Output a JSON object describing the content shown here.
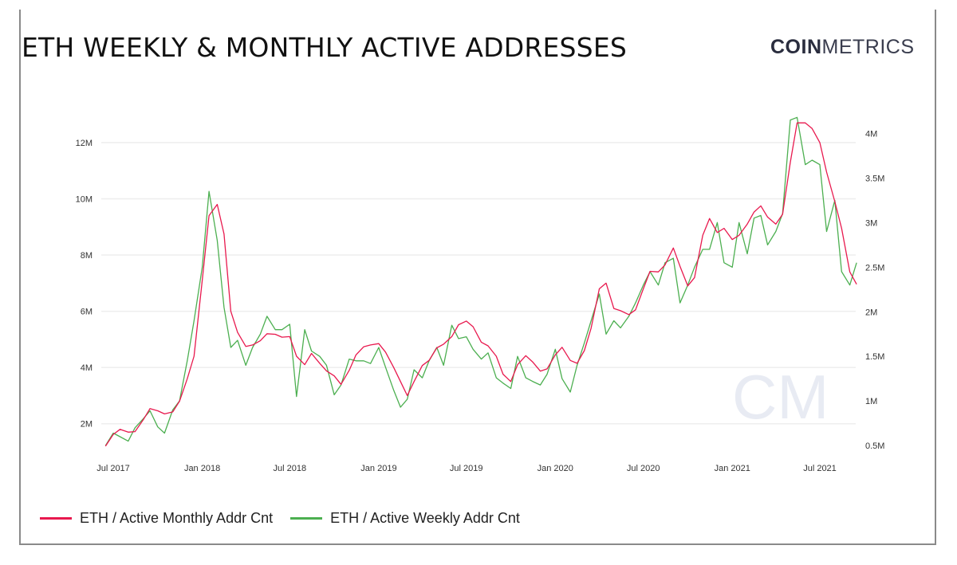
{
  "title": "ETH WEEKLY & MONTHLY ACTIVE ADDRESSES",
  "logo": {
    "bold": "COIN",
    "light": "METRICS",
    "watermark": "CM"
  },
  "chart_data": {
    "type": "line",
    "title": "ETH WEEKLY & MONTHLY ACTIVE ADDRESSES",
    "x_ticks": [
      {
        "date": "2017-07-01",
        "label": "Jul 2017"
      },
      {
        "date": "2018-01-01",
        "label": "Jan 2018"
      },
      {
        "date": "2018-07-01",
        "label": "Jul 2018"
      },
      {
        "date": "2019-01-01",
        "label": "Jan 2019"
      },
      {
        "date": "2019-07-01",
        "label": "Jul 2019"
      },
      {
        "date": "2020-01-01",
        "label": "Jan 2020"
      },
      {
        "date": "2020-07-01",
        "label": "Jul 2020"
      },
      {
        "date": "2021-01-01",
        "label": "Jan 2021"
      },
      {
        "date": "2021-07-01",
        "label": "Jul 2021"
      }
    ],
    "y_left": {
      "ticks": [
        2,
        4,
        6,
        8,
        10,
        12
      ],
      "tick_labels": [
        "2M",
        "4M",
        "6M",
        "8M",
        "10M",
        "12M"
      ],
      "ylim": [
        1,
        13.5
      ],
      "unit": "millions",
      "grid": true
    },
    "y_right": {
      "ticks": [
        0.5,
        1,
        1.5,
        2,
        2.5,
        3,
        3.5,
        4
      ],
      "tick_labels": [
        "0.5M",
        "1M",
        "1.5M",
        "2M",
        "2.5M",
        "3M",
        "3.5M",
        "4M"
      ],
      "ylim": [
        0.43,
        4.37
      ],
      "unit": "millions"
    },
    "legend_position": "bottom-left",
    "dates": [
      "2017-06-15",
      "2017-07-01",
      "2017-07-15",
      "2017-08-01",
      "2017-08-15",
      "2017-09-01",
      "2017-09-15",
      "2017-10-01",
      "2017-10-15",
      "2017-11-01",
      "2017-11-15",
      "2017-12-01",
      "2017-12-15",
      "2018-01-01",
      "2018-01-15",
      "2018-02-01",
      "2018-02-15",
      "2018-03-01",
      "2018-03-15",
      "2018-04-01",
      "2018-04-15",
      "2018-05-01",
      "2018-05-15",
      "2018-06-01",
      "2018-06-15",
      "2018-07-01",
      "2018-07-15",
      "2018-08-01",
      "2018-08-15",
      "2018-09-01",
      "2018-09-15",
      "2018-10-01",
      "2018-10-15",
      "2018-11-01",
      "2018-11-15",
      "2018-12-01",
      "2018-12-15",
      "2019-01-01",
      "2019-01-15",
      "2019-02-01",
      "2019-02-15",
      "2019-03-01",
      "2019-03-15",
      "2019-04-01",
      "2019-04-15",
      "2019-05-01",
      "2019-05-15",
      "2019-06-01",
      "2019-06-15",
      "2019-07-01",
      "2019-07-15",
      "2019-08-01",
      "2019-08-15",
      "2019-09-01",
      "2019-09-15",
      "2019-10-01",
      "2019-10-15",
      "2019-11-01",
      "2019-11-15",
      "2019-12-01",
      "2019-12-15",
      "2020-01-01",
      "2020-01-15",
      "2020-02-01",
      "2020-02-15",
      "2020-03-01",
      "2020-03-15",
      "2020-04-01",
      "2020-04-15",
      "2020-05-01",
      "2020-05-15",
      "2020-06-01",
      "2020-06-15",
      "2020-07-01",
      "2020-07-15",
      "2020-08-01",
      "2020-08-15",
      "2020-09-01",
      "2020-09-15",
      "2020-10-01",
      "2020-10-15",
      "2020-11-01",
      "2020-11-15",
      "2020-12-01",
      "2020-12-15",
      "2021-01-01",
      "2021-01-15",
      "2021-02-01",
      "2021-02-15",
      "2021-03-01",
      "2021-03-15",
      "2021-04-01",
      "2021-04-15",
      "2021-05-01",
      "2021-05-15",
      "2021-06-01",
      "2021-06-15",
      "2021-07-01",
      "2021-07-15",
      "2021-08-01",
      "2021-08-15",
      "2021-09-01",
      "2021-09-15"
    ],
    "series": [
      {
        "name": "ETH / Active Monthly Addr Cnt",
        "axis": "left",
        "color": "#e8194e",
        "values": [
          1.2,
          1.62,
          1.8,
          1.7,
          1.72,
          2.14,
          2.54,
          2.46,
          2.35,
          2.42,
          2.8,
          3.6,
          4.4,
          7.1,
          9.4,
          9.8,
          8.75,
          6.0,
          5.25,
          4.75,
          4.8,
          4.95,
          5.2,
          5.18,
          5.08,
          5.1,
          4.4,
          4.1,
          4.5,
          4.15,
          3.88,
          3.7,
          3.4,
          3.9,
          4.45,
          4.74,
          4.8,
          4.85,
          4.55,
          4.0,
          3.5,
          3.0,
          3.5,
          4.07,
          4.25,
          4.7,
          4.83,
          5.1,
          5.52,
          5.65,
          5.45,
          4.9,
          4.77,
          4.4,
          3.76,
          3.5,
          4.1,
          4.42,
          4.2,
          3.87,
          3.95,
          4.45,
          4.72,
          4.25,
          4.15,
          4.6,
          5.4,
          6.8,
          7.0,
          6.1,
          6.02,
          5.88,
          6.05,
          6.8,
          7.42,
          7.4,
          7.65,
          8.25,
          7.6,
          6.9,
          7.2,
          8.7,
          9.3,
          8.8,
          8.95,
          8.55,
          8.7,
          9.1,
          9.53,
          9.75,
          9.35,
          9.1,
          9.45,
          11.3,
          12.7,
          12.7,
          12.5,
          12.0,
          10.95,
          9.9,
          8.95,
          7.4,
          6.96
        ]
      },
      {
        "name": "ETH / Active Weekly Addr Cnt",
        "axis": "right",
        "color": "#4caf50",
        "values": [
          0.5,
          0.64,
          0.6,
          0.55,
          0.7,
          0.8,
          0.89,
          0.71,
          0.64,
          0.9,
          1.0,
          1.45,
          1.9,
          2.5,
          3.35,
          2.8,
          2.05,
          1.6,
          1.68,
          1.4,
          1.6,
          1.75,
          1.95,
          1.8,
          1.8,
          1.86,
          1.05,
          1.8,
          1.56,
          1.5,
          1.4,
          1.07,
          1.18,
          1.47,
          1.45,
          1.45,
          1.42,
          1.6,
          1.38,
          1.12,
          0.93,
          1.02,
          1.35,
          1.26,
          1.45,
          1.6,
          1.4,
          1.85,
          1.7,
          1.72,
          1.58,
          1.47,
          1.54,
          1.26,
          1.2,
          1.14,
          1.5,
          1.26,
          1.22,
          1.18,
          1.3,
          1.58,
          1.25,
          1.1,
          1.4,
          1.65,
          1.9,
          2.2,
          1.75,
          1.9,
          1.82,
          1.95,
          2.1,
          2.3,
          2.45,
          2.3,
          2.55,
          2.6,
          2.1,
          2.3,
          2.5,
          2.7,
          2.7,
          3.0,
          2.55,
          2.5,
          3.0,
          2.65,
          3.05,
          3.08,
          2.75,
          2.9,
          3.1,
          4.15,
          4.18,
          3.65,
          3.7,
          3.65,
          2.9,
          3.25,
          2.45,
          2.3,
          2.55
        ]
      }
    ]
  }
}
